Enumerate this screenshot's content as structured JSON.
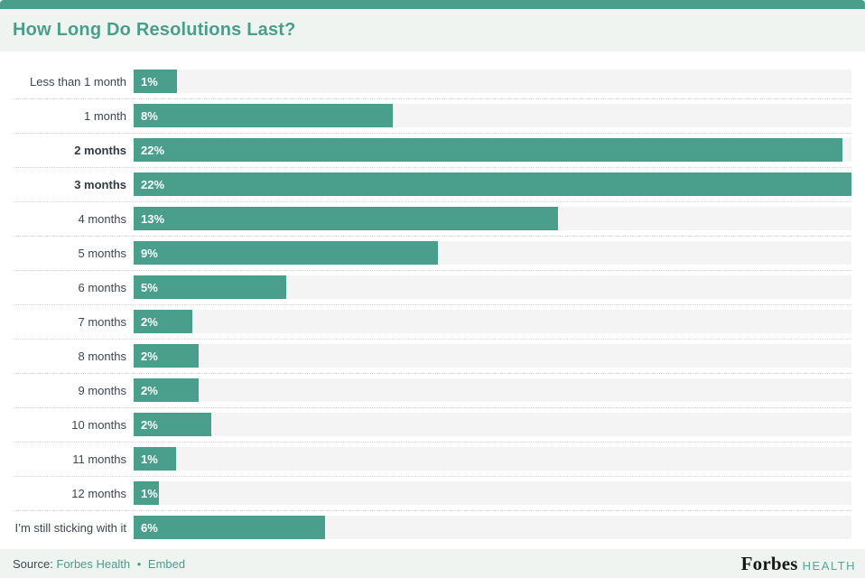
{
  "header": {
    "title": "How Long Do Resolutions Last?"
  },
  "chart_data": {
    "type": "bar",
    "orientation": "horizontal",
    "title": "How Long Do Resolutions Last?",
    "xlabel": "",
    "ylabel": "",
    "grid": "dotted row separators",
    "legend": "none",
    "categories": [
      "Less than 1 month",
      "1 month",
      "2 months",
      "3 months",
      "4 months",
      "5 months",
      "6 months",
      "7 months",
      "8 months",
      "9 months",
      "10 months",
      "11 months",
      "12 months",
      "I’m still sticking with it"
    ],
    "values": [
      1,
      8,
      22,
      22,
      13,
      9,
      5,
      2,
      2,
      2,
      2,
      1,
      1,
      6
    ],
    "value_labels": [
      "1%",
      "8%",
      "22%",
      "22%",
      "13%",
      "9%",
      "5%",
      "2%",
      "2%",
      "2%",
      "2%",
      "1%",
      "1%",
      "6%"
    ],
    "bar_width_pct_of_track": [
      6.0,
      36.1,
      98.7,
      100,
      59.1,
      42.4,
      21.3,
      8.2,
      9.1,
      9.1,
      10.8,
      5.9,
      3.5,
      26.7
    ],
    "bold": [
      false,
      false,
      true,
      true,
      false,
      false,
      false,
      false,
      false,
      false,
      false,
      false,
      false,
      false
    ],
    "scale_note": "bars scaled so the max value (22%) fills the full track width"
  },
  "footer": {
    "source_label": "Source:",
    "source_link": "Forbes Health",
    "separator": "•",
    "embed_link": "Embed",
    "logo_primary": "Forbes",
    "logo_secondary": "HEALTH"
  },
  "colors": {
    "accent_teal": "#4a9e8c",
    "bar_fill": "#4a9e8c",
    "bar_track": "#f4f4f4",
    "band_background": "#eff4f0",
    "label_text": "#3b4653",
    "link_teal": "#4a9e8c",
    "logo_black": "#171717"
  }
}
